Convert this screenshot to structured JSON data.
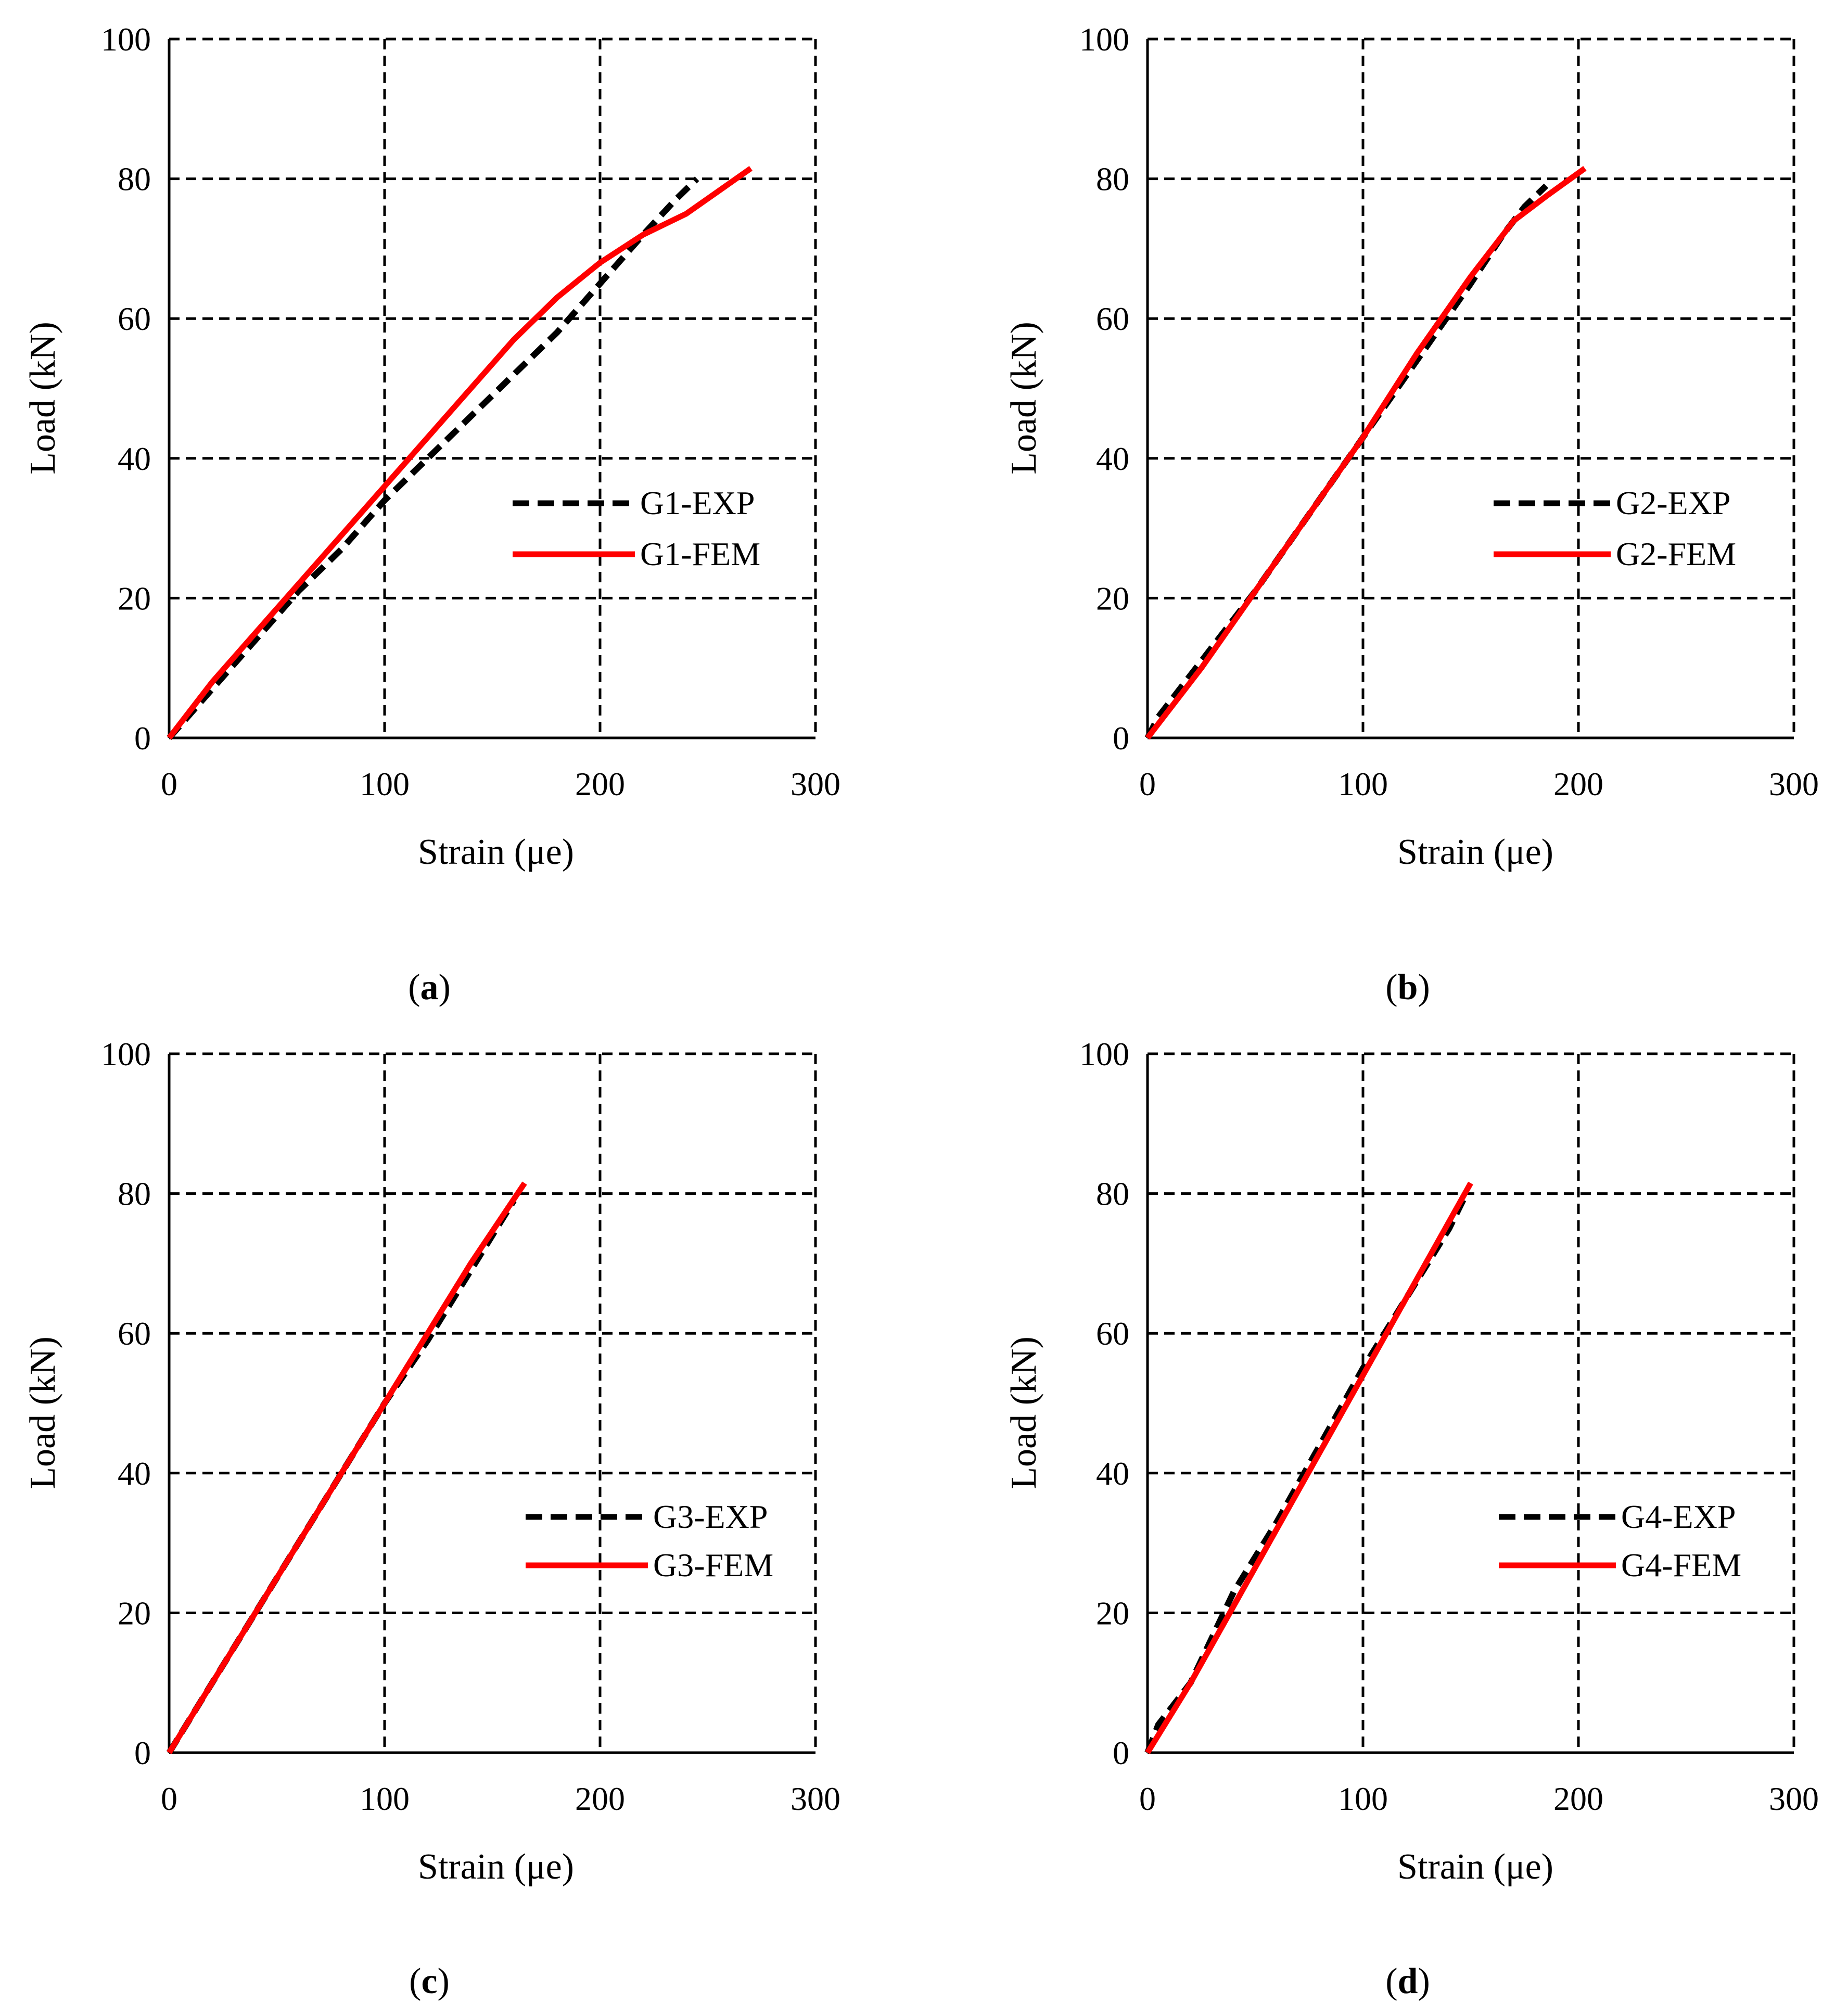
{
  "colors": {
    "exp": "#000000",
    "fem": "#ff0000",
    "grid": "#000000",
    "background": "#ffffff"
  },
  "chart_data": [
    {
      "type": "line",
      "panel_label": "a",
      "xlabel": "Strain (μe)",
      "ylabel": "Load (kN)",
      "xlim": [
        0,
        300
      ],
      "ylim": [
        0,
        100
      ],
      "xticks": [
        "0",
        "100",
        "200",
        "300"
      ],
      "yticks": [
        "0",
        "20",
        "40",
        "60",
        "80",
        "100"
      ],
      "grid": true,
      "legend": "center-right",
      "series": [
        {
          "name": "G1-EXP",
          "style": "dashed",
          "x": [
            0,
            20,
            40,
            60,
            80,
            100,
            120,
            140,
            160,
            180,
            200,
            220,
            235,
            245
          ],
          "y": [
            0,
            7,
            14,
            21,
            27,
            34,
            40,
            46,
            52,
            58,
            65,
            72,
            77,
            80
          ]
        },
        {
          "name": "G1-FEM",
          "style": "solid",
          "x": [
            0,
            20,
            40,
            60,
            80,
            100,
            120,
            140,
            160,
            180,
            200,
            220,
            240,
            270
          ],
          "y": [
            0,
            8,
            15,
            22,
            29,
            36,
            43,
            50,
            57,
            63,
            68,
            72,
            75,
            81.5
          ]
        }
      ]
    },
    {
      "type": "line",
      "panel_label": "b",
      "xlabel": "Strain (μe)",
      "ylabel": "Load (kN)",
      "xlim": [
        0,
        300
      ],
      "ylim": [
        0,
        100
      ],
      "xticks": [
        "0",
        "100",
        "200",
        "300"
      ],
      "yticks": [
        "0",
        "20",
        "40",
        "60",
        "80",
        "100"
      ],
      "grid": true,
      "legend": "center-right",
      "series": [
        {
          "name": "G2-EXP",
          "style": "dashed",
          "x": [
            0,
            5,
            25,
            50,
            75,
            100,
            125,
            150,
            165,
            175,
            185
          ],
          "y": [
            0,
            3,
            11,
            21,
            32,
            43,
            54,
            65,
            72,
            76,
            79
          ]
        },
        {
          "name": "G2-FEM",
          "style": "solid",
          "x": [
            0,
            25,
            50,
            75,
            100,
            125,
            150,
            170,
            185,
            203
          ],
          "y": [
            0,
            10,
            21,
            32,
            43,
            55,
            66,
            74,
            77.5,
            81.5
          ]
        }
      ]
    },
    {
      "type": "line",
      "panel_label": "c",
      "xlabel": "Strain (μe)",
      "ylabel": "Load (kN)",
      "xlim": [
        0,
        300
      ],
      "ylim": [
        0,
        100
      ],
      "xticks": [
        "0",
        "100",
        "200",
        "300"
      ],
      "yticks": [
        "0",
        "20",
        "40",
        "60",
        "80",
        "100"
      ],
      "grid": true,
      "legend": "center-right",
      "series": [
        {
          "name": "G3-EXP",
          "style": "dashed",
          "x": [
            0,
            20,
            40,
            60,
            80,
            100,
            120,
            140,
            160
          ],
          "y": [
            0,
            10,
            20,
            30,
            40,
            50,
            59,
            69,
            79
          ]
        },
        {
          "name": "G3-FEM",
          "style": "solid",
          "x": [
            0,
            20,
            40,
            60,
            80,
            100,
            120,
            140,
            165
          ],
          "y": [
            0,
            10,
            20,
            30,
            40,
            50,
            60,
            70,
            81.5
          ]
        }
      ]
    },
    {
      "type": "line",
      "panel_label": "d",
      "xlabel": "Strain (μe)",
      "ylabel": "Load (kN)",
      "xlim": [
        0,
        300
      ],
      "ylim": [
        0,
        100
      ],
      "xticks": [
        "0",
        "100",
        "200",
        "300"
      ],
      "yticks": [
        "0",
        "20",
        "40",
        "60",
        "80",
        "100"
      ],
      "grid": true,
      "legend": "center-right",
      "series": [
        {
          "name": "G4-EXP",
          "style": "dashed",
          "x": [
            0,
            5,
            20,
            40,
            60,
            80,
            100,
            120,
            140,
            148
          ],
          "y": [
            0,
            4,
            10,
            23,
            33,
            44,
            55,
            65,
            75,
            80
          ]
        },
        {
          "name": "G4-FEM",
          "style": "solid",
          "x": [
            0,
            20,
            40,
            60,
            80,
            100,
            120,
            140,
            150
          ],
          "y": [
            0,
            10,
            21,
            32,
            43,
            54,
            65,
            76,
            81.5
          ]
        }
      ]
    }
  ]
}
